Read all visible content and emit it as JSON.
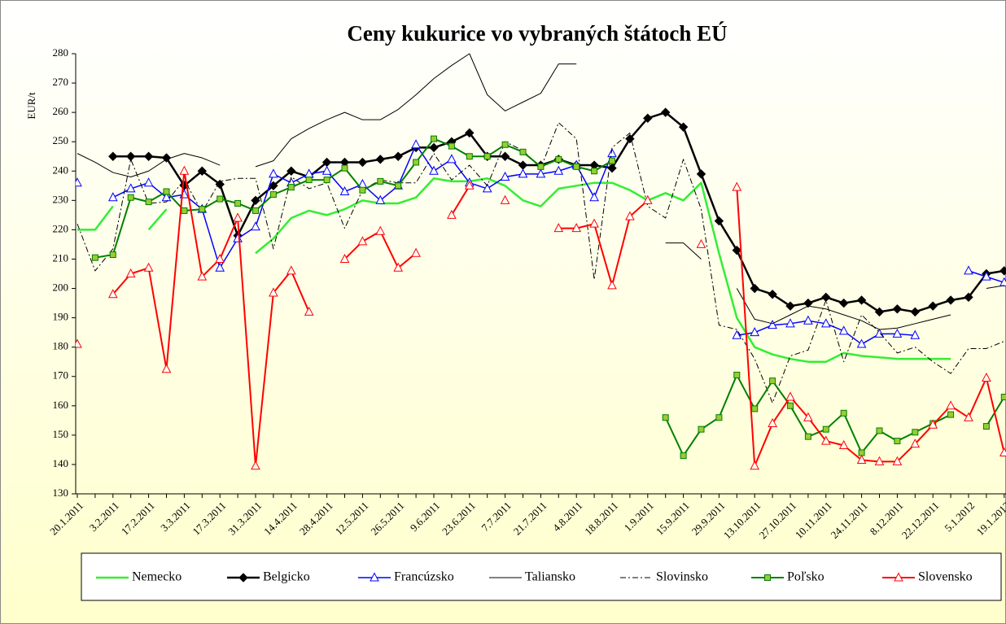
{
  "chart_data": {
    "type": "line",
    "title": "Ceny kukurice vo vybraných štátoch EÚ",
    "y_label": "EUR/t",
    "categories": [
      "20.1.2011",
      null,
      "3.2.2011",
      null,
      "17.2.2011",
      null,
      "3.3.2011",
      null,
      "17.3.2011",
      null,
      "31.3.2011",
      null,
      "14.4.2011",
      null,
      "28.4.2011",
      null,
      "12.5.2011",
      null,
      "26.5.2011",
      null,
      "9.6.2011",
      null,
      "23.6.2011",
      null,
      "7.7.2011",
      null,
      "21.7.2011",
      null,
      "4.8.2011",
      null,
      "18.8.2011",
      null,
      "1.9.2011",
      null,
      "15.9.2011",
      null,
      "29.9.2011",
      null,
      "13.10.2011",
      null,
      "27.10.2011",
      null,
      "10.11.2011",
      null,
      "24.11.2011",
      null,
      "8.12.2011",
      null,
      "22.12.2011",
      null,
      "5.1.2012",
      null,
      "19.1.2012"
    ],
    "ylim": [
      130,
      280
    ],
    "yticks": [
      130,
      140,
      150,
      160,
      170,
      180,
      190,
      200,
      210,
      220,
      230,
      240,
      250,
      260,
      270,
      280
    ],
    "grid": false,
    "legend": "bottom",
    "series": [
      {
        "name": "Nemecko",
        "color": "#33ee33",
        "line_width": 2.5,
        "marker": null,
        "dash": null,
        "values": [
          220,
          220,
          228,
          null,
          220,
          227,
          null,
          null,
          null,
          null,
          212,
          217,
          224,
          226.5,
          225,
          227,
          230,
          229,
          229,
          231,
          237.5,
          236.5,
          236.5,
          237.5,
          235,
          230,
          228,
          234,
          235,
          236,
          236,
          233.5,
          230,
          232.5,
          230,
          236,
          212,
          190,
          180,
          177.5,
          176,
          175,
          175,
          178,
          177,
          176.5,
          176,
          176,
          176,
          176,
          null,
          null,
          null
        ]
      },
      {
        "name": "Belgicko",
        "color": "#000000",
        "line_width": 2.5,
        "marker": "diamond",
        "marker_fill": "#000000",
        "dash": null,
        "values": [
          null,
          null,
          245,
          245,
          245,
          244.5,
          235,
          240,
          235.5,
          218,
          230,
          235,
          240,
          238,
          243,
          243,
          243,
          244,
          245,
          248,
          248,
          250,
          253,
          245,
          245,
          242,
          242,
          244,
          242,
          242,
          241,
          251,
          258,
          260,
          255,
          239,
          223,
          213,
          200,
          198,
          194,
          195,
          197,
          195,
          196,
          192,
          193,
          192,
          194,
          196,
          197,
          205,
          206
        ]
      },
      {
        "name": "Francúzsko",
        "color": "#0000ff",
        "line_width": 1.5,
        "marker": "triangle",
        "marker_fill": "#ffffff",
        "dash": null,
        "values": [
          236,
          null,
          231,
          234,
          236,
          231,
          232,
          227,
          207,
          217,
          221,
          239,
          236,
          239,
          240,
          233,
          235.5,
          230,
          235,
          249,
          240,
          244,
          236,
          234,
          238,
          239,
          239,
          240,
          242,
          231,
          246,
          null,
          null,
          null,
          null,
          null,
          null,
          184,
          185,
          187.5,
          188,
          189,
          188,
          185.5,
          181,
          184.5,
          184.5,
          184,
          null,
          null,
          206,
          204,
          202
        ]
      },
      {
        "name": "Taliansko",
        "color": "#000000",
        "line_width": 1,
        "marker": null,
        "dash": null,
        "values": [
          246,
          243,
          239.5,
          238,
          240,
          244,
          246,
          244.5,
          242,
          null,
          241.5,
          243.5,
          251,
          254.5,
          257.5,
          260,
          257.5,
          257.5,
          261,
          266,
          271.5,
          276,
          280,
          266,
          260.5,
          263.5,
          266.5,
          276.5,
          276.5,
          null,
          null,
          null,
          null,
          215.5,
          215.5,
          210,
          null,
          200,
          189.5,
          188,
          191,
          194,
          193,
          191,
          189,
          186,
          186.5,
          188,
          189.5,
          191,
          null,
          200,
          201
        ]
      },
      {
        "name": "Slovinsko",
        "color": "#000000",
        "line_width": 1,
        "marker": null,
        "dash": "dashdot",
        "values": [
          222,
          206,
          213.5,
          244,
          229,
          229.5,
          237,
          226,
          236.5,
          237.5,
          237.5,
          213.5,
          238,
          234,
          236,
          220.5,
          233.5,
          237,
          236,
          236,
          246,
          237,
          242,
          235,
          250,
          247,
          241,
          256.5,
          251,
          203,
          248,
          253,
          228,
          224,
          244,
          227,
          187.5,
          186,
          176,
          161,
          177,
          179,
          196,
          175,
          191,
          185,
          178,
          180,
          175,
          171,
          179.5,
          179.5,
          182
        ]
      },
      {
        "name": "Poľsko",
        "color": "#008000",
        "line_width": 2,
        "marker": "square",
        "marker_fill": "#99cc33",
        "dash": null,
        "values": [
          null,
          210.5,
          211.5,
          231,
          229.5,
          233,
          226.5,
          227,
          230.5,
          229,
          226.5,
          232,
          234.5,
          237,
          237,
          241,
          233.5,
          236.5,
          235,
          243,
          251,
          248.5,
          245,
          245,
          249,
          246.5,
          241.5,
          244,
          241.5,
          240,
          243.5,
          null,
          null,
          156,
          143,
          152,
          156,
          170.5,
          159,
          168.5,
          160,
          149.5,
          152,
          157.5,
          144,
          151.5,
          148,
          151,
          154,
          157,
          null,
          153,
          163
        ]
      },
      {
        "name": "Slovensko",
        "color": "#ff0000",
        "line_width": 2,
        "marker": "triangle",
        "marker_fill": "#ffffff",
        "dash": null,
        "values": [
          181,
          null,
          198,
          205,
          207,
          172.5,
          240,
          204,
          210,
          224,
          139.5,
          198.5,
          206,
          192,
          null,
          210,
          216,
          219.5,
          207,
          212,
          null,
          225,
          235,
          null,
          230,
          null,
          null,
          220.5,
          220.5,
          222,
          201,
          224.5,
          230,
          null,
          null,
          215,
          null,
          234.5,
          139.5,
          154,
          163,
          156,
          148,
          146.5,
          141.5,
          141,
          141,
          147,
          153.5,
          160,
          156,
          169.5,
          144
        ]
      }
    ]
  }
}
